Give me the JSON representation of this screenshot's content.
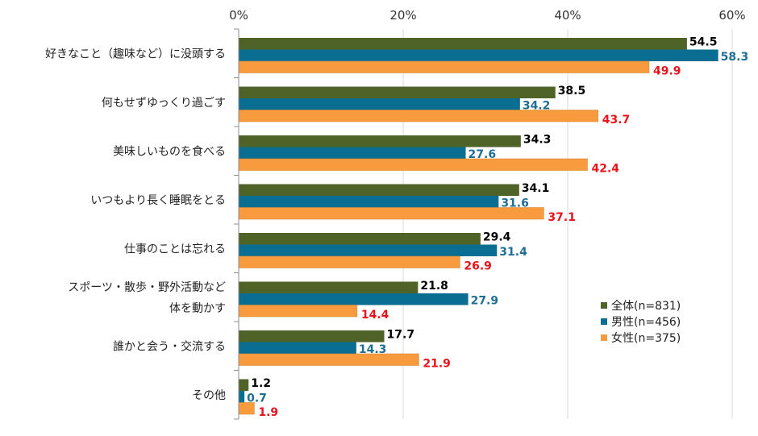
{
  "chart_data": {
    "type": "bar",
    "orientation": "horizontal",
    "title": "",
    "xlabel": "",
    "ylabel": "",
    "xlim": [
      0,
      60
    ],
    "tick_values": [
      0,
      20,
      40,
      60
    ],
    "tick_labels": [
      "0%",
      "20%",
      "40%",
      "60%"
    ],
    "grid": true,
    "legend_position": "right",
    "categories": [
      [
        "好きなこと（趣味など）に没頭する"
      ],
      [
        "何もせずゆっくり過ごす"
      ],
      [
        "美味しいものを食べる"
      ],
      [
        "いつもより長く睡眠をとる"
      ],
      [
        "仕事のことは忘れる"
      ],
      [
        "スポーツ・散歩・野外活動など",
        "体を動かす"
      ],
      [
        "誰かと会う・交流する"
      ],
      [
        "その他"
      ]
    ],
    "series": [
      {
        "name": "全体(n=831)",
        "color": "#4f6228",
        "label_color": "#000000",
        "values": [
          54.5,
          38.5,
          34.3,
          34.1,
          29.4,
          21.8,
          17.7,
          1.2
        ],
        "labels": [
          "54.5",
          "38.5",
          "34.3",
          "34.1",
          "29.4",
          "21.8",
          "17.7",
          "1.2"
        ]
      },
      {
        "name": "男性(n=456)",
        "color": "#0a6d92",
        "label_color": "#1f6f93",
        "values": [
          58.3,
          34.2,
          27.6,
          31.6,
          31.4,
          27.9,
          14.3,
          0.7
        ],
        "labels": [
          "58.3",
          "34.2",
          "27.6",
          "31.6",
          "31.4",
          "27.9",
          "14.3",
          "0.7"
        ]
      },
      {
        "name": "女性(n=375)",
        "color": "#f79b3e",
        "label_color": "#e8141c",
        "values": [
          49.9,
          43.7,
          42.4,
          37.1,
          26.9,
          14.4,
          21.9,
          1.9
        ],
        "labels": [
          "49.9",
          "43.7",
          "42.4",
          "37.1",
          "26.9",
          "14.4",
          "21.9",
          "1.9"
        ]
      }
    ]
  }
}
